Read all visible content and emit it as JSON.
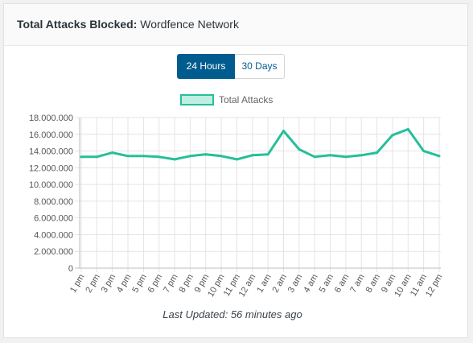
{
  "header": {
    "title_label": "Total Attacks Blocked:",
    "title_value": "Wordfence Network"
  },
  "toggle": {
    "active_label": "24 Hours",
    "inactive_label": "30 Days"
  },
  "footer": {
    "last_updated": "Last Updated: 56 minutes ago"
  },
  "colors": {
    "line": "#26bf9a",
    "fill": "#bfeee3",
    "active_button": "#005b8e"
  },
  "chart_data": {
    "type": "line",
    "title": "",
    "xlabel": "",
    "ylabel": "",
    "ylim": [
      0,
      18000000
    ],
    "y_ticks": [
      "0",
      "2.000.000",
      "4.000.000",
      "6.000.000",
      "8.000.000",
      "10.000.000",
      "12.000.000",
      "14.000.000",
      "16.000.000",
      "18.000.000"
    ],
    "grid": true,
    "legend_position": "top-center",
    "categories": [
      "1 pm",
      "2 pm",
      "3 pm",
      "4 pm",
      "5 pm",
      "6 pm",
      "7 pm",
      "8 pm",
      "9 pm",
      "10 pm",
      "11 pm",
      "12 am",
      "1 am",
      "2 am",
      "3 am",
      "4 am",
      "5 am",
      "6 am",
      "7 am",
      "8 am",
      "9 am",
      "10 am",
      "11 am",
      "12 pm"
    ],
    "series": [
      {
        "name": "Total Attacks",
        "values": [
          13300000,
          13300000,
          13800000,
          13400000,
          13400000,
          13300000,
          13000000,
          13400000,
          13600000,
          13400000,
          13000000,
          13500000,
          13600000,
          16400000,
          14200000,
          13300000,
          13500000,
          13300000,
          13500000,
          13800000,
          15900000,
          16600000,
          14000000,
          13400000
        ]
      }
    ]
  }
}
